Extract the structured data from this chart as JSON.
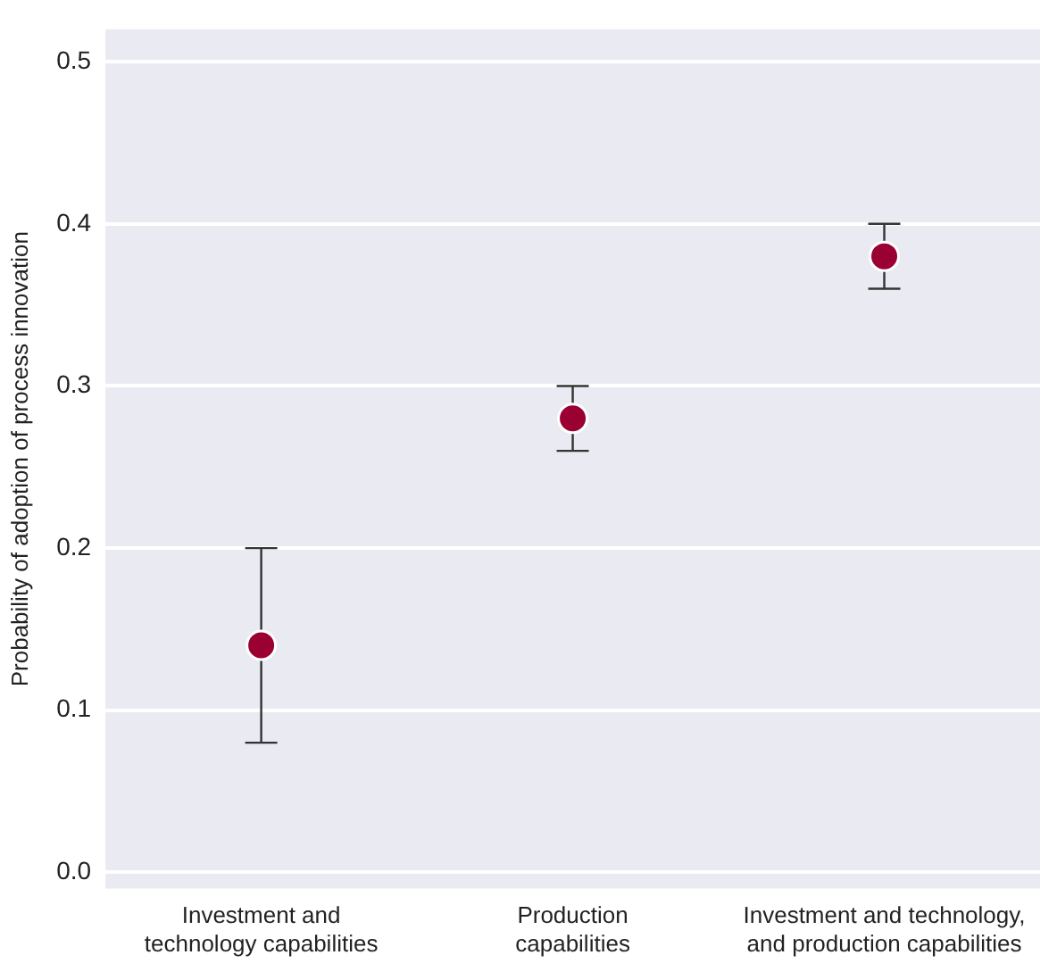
{
  "chart_data": {
    "type": "scatter",
    "ylabel": "Probability of adoption of process innovation",
    "categories": [
      "Investment and\ntechnology capabilities",
      "Production\ncapabilities",
      "Investment and technology,\nand production capabilities"
    ],
    "values": [
      0.14,
      0.28,
      0.38
    ],
    "errors": [
      [
        0.08,
        0.2
      ],
      [
        0.26,
        0.3
      ],
      [
        0.36,
        0.4
      ]
    ],
    "color": "#9b0032",
    "marker": "circle",
    "grid": "y",
    "ylim": [
      -0.01,
      0.52
    ],
    "yticks": [
      {
        "value": 0,
        "label": "0.0"
      },
      {
        "value": 0.1,
        "label": "0.1"
      },
      {
        "value": 0.2,
        "label": "0.2"
      },
      {
        "value": 0.3,
        "label": "0.3"
      },
      {
        "value": 0.4,
        "label": "0.4"
      },
      {
        "value": 0.5,
        "label": "0.5"
      }
    ]
  }
}
